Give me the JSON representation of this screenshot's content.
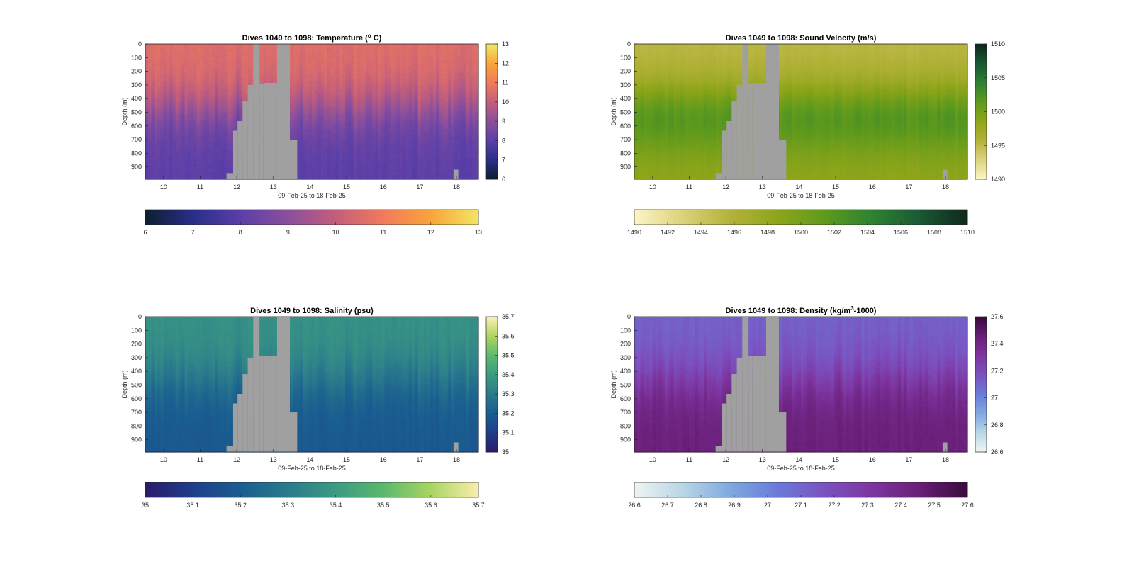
{
  "chart_data": [
    {
      "type": "heatmap",
      "title": "Dives 1049 to 1098: Temperature (° C)",
      "title_parts": {
        "prefix": "Dives 1049 to 1098: Temperature (",
        "sup": "o",
        "suffix": " C)"
      },
      "xlabel": "09-Feb-25 to 18-Feb-25",
      "ylabel": "Depth (m)",
      "x_ticks": [
        "10",
        "11",
        "12",
        "13",
        "14",
        "15",
        "16",
        "17",
        "18"
      ],
      "x_range": [
        9.5,
        18.6
      ],
      "y_ticks": [
        "0",
        "100",
        "200",
        "300",
        "400",
        "500",
        "600",
        "700",
        "800",
        "900"
      ],
      "y_range": [
        0,
        990
      ],
      "y_reversed": true,
      "colorbar_ticks": [
        "6",
        "7",
        "8",
        "9",
        "10",
        "11",
        "12",
        "13"
      ],
      "colorbar_range": [
        6,
        13
      ],
      "colormap": [
        "#0d1f33",
        "#2a2f8a",
        "#5b3fa8",
        "#8b4f9c",
        "#c25e7c",
        "#f07a5c",
        "#f9a33a",
        "#f2e462"
      ],
      "surface_value": 10.6,
      "deep_value": 8.0,
      "no_data_color": "#a0a0a0"
    },
    {
      "type": "heatmap",
      "title": "Dives 1049 to 1098: Sound Velocity (m/s)",
      "title_parts": {
        "prefix": "Dives 1049 to 1098: Sound Velocity (m/s)",
        "sup": "",
        "suffix": ""
      },
      "xlabel": "09-Feb-25 to 18-Feb-25",
      "ylabel": "Depth (m)",
      "x_ticks": [
        "10",
        "11",
        "12",
        "13",
        "14",
        "15",
        "16",
        "17",
        "18"
      ],
      "x_range": [
        9.5,
        18.6
      ],
      "y_ticks": [
        "0",
        "100",
        "200",
        "300",
        "400",
        "500",
        "600",
        "700",
        "800",
        "900"
      ],
      "y_range": [
        0,
        990
      ],
      "y_reversed": true,
      "colorbar_ticks": [
        "1490",
        "1495",
        "1500",
        "1505",
        "1510"
      ],
      "colorbar_h_ticks": [
        "1490",
        "1492",
        "1494",
        "1496",
        "1498",
        "1500",
        "1502",
        "1504",
        "1506",
        "1508",
        "1510"
      ],
      "colorbar_range": [
        1490,
        1510
      ],
      "colormap": [
        "#fbf4c5",
        "#dcd27a",
        "#b3b23a",
        "#8ea51a",
        "#5f9a1c",
        "#2f8233",
        "#1a5a34",
        "#10291e"
      ],
      "surface_value": 1495.2,
      "deep_value": 1498.5,
      "mid_value": 1500.2,
      "no_data_color": "#a0a0a0"
    },
    {
      "type": "heatmap",
      "title": "Dives 1049 to 1098: Salinity (psu)",
      "title_parts": {
        "prefix": "Dives 1049 to 1098: Salinity (psu)",
        "sup": "",
        "suffix": ""
      },
      "xlabel": "09-Feb-25 to 18-Feb-25",
      "ylabel": "Depth (m)",
      "x_ticks": [
        "10",
        "11",
        "12",
        "13",
        "14",
        "15",
        "16",
        "17",
        "18"
      ],
      "x_range": [
        9.5,
        18.6
      ],
      "y_ticks": [
        "0",
        "100",
        "200",
        "300",
        "400",
        "500",
        "600",
        "700",
        "800",
        "900"
      ],
      "y_range": [
        0,
        990
      ],
      "y_reversed": true,
      "colorbar_ticks": [
        "35",
        "35.1",
        "35.2",
        "35.3",
        "35.4",
        "35.5",
        "35.6",
        "35.7"
      ],
      "colorbar_range": [
        35,
        35.7
      ],
      "colormap": [
        "#2a1c6b",
        "#1f3f8c",
        "#1a5e90",
        "#2a7b8c",
        "#3d9a82",
        "#5ab86e",
        "#a8d460",
        "#f7edad"
      ],
      "surface_value": 35.37,
      "deep_value": 35.18,
      "no_data_color": "#a0a0a0"
    },
    {
      "type": "heatmap",
      "title": "Dives 1049 to 1098: Density (kg/m³-1000)",
      "title_parts": {
        "prefix": "Dives 1049 to 1098: Density (kg/m",
        "sup": "3",
        "suffix": "-1000)"
      },
      "xlabel": "09-Feb-25 to 18-Feb-25",
      "ylabel": "Depth (m)",
      "x_ticks": [
        "10",
        "11",
        "12",
        "13",
        "14",
        "15",
        "16",
        "17",
        "18"
      ],
      "x_range": [
        9.5,
        18.6
      ],
      "y_ticks": [
        "0",
        "100",
        "200",
        "300",
        "400",
        "500",
        "600",
        "700",
        "800",
        "900"
      ],
      "y_range": [
        0,
        990
      ],
      "y_reversed": true,
      "colorbar_ticks": [
        "26.6",
        "26.8",
        "27",
        "27.2",
        "27.4",
        "27.6"
      ],
      "colorbar_h_ticks": [
        "26.6",
        "26.7",
        "26.8",
        "26.9",
        "27",
        "27.1",
        "27.2",
        "27.3",
        "27.4",
        "27.5",
        "27.6"
      ],
      "colorbar_range": [
        26.6,
        27.6
      ],
      "colormap": [
        "#eef3f2",
        "#b8d6e6",
        "#7fa9e0",
        "#6a7ad8",
        "#7b52c0",
        "#7d35a0",
        "#6a1f78",
        "#3a0c3e"
      ],
      "surface_value": 27.12,
      "deep_value": 27.45,
      "no_data_color": "#a0a0a0"
    }
  ]
}
